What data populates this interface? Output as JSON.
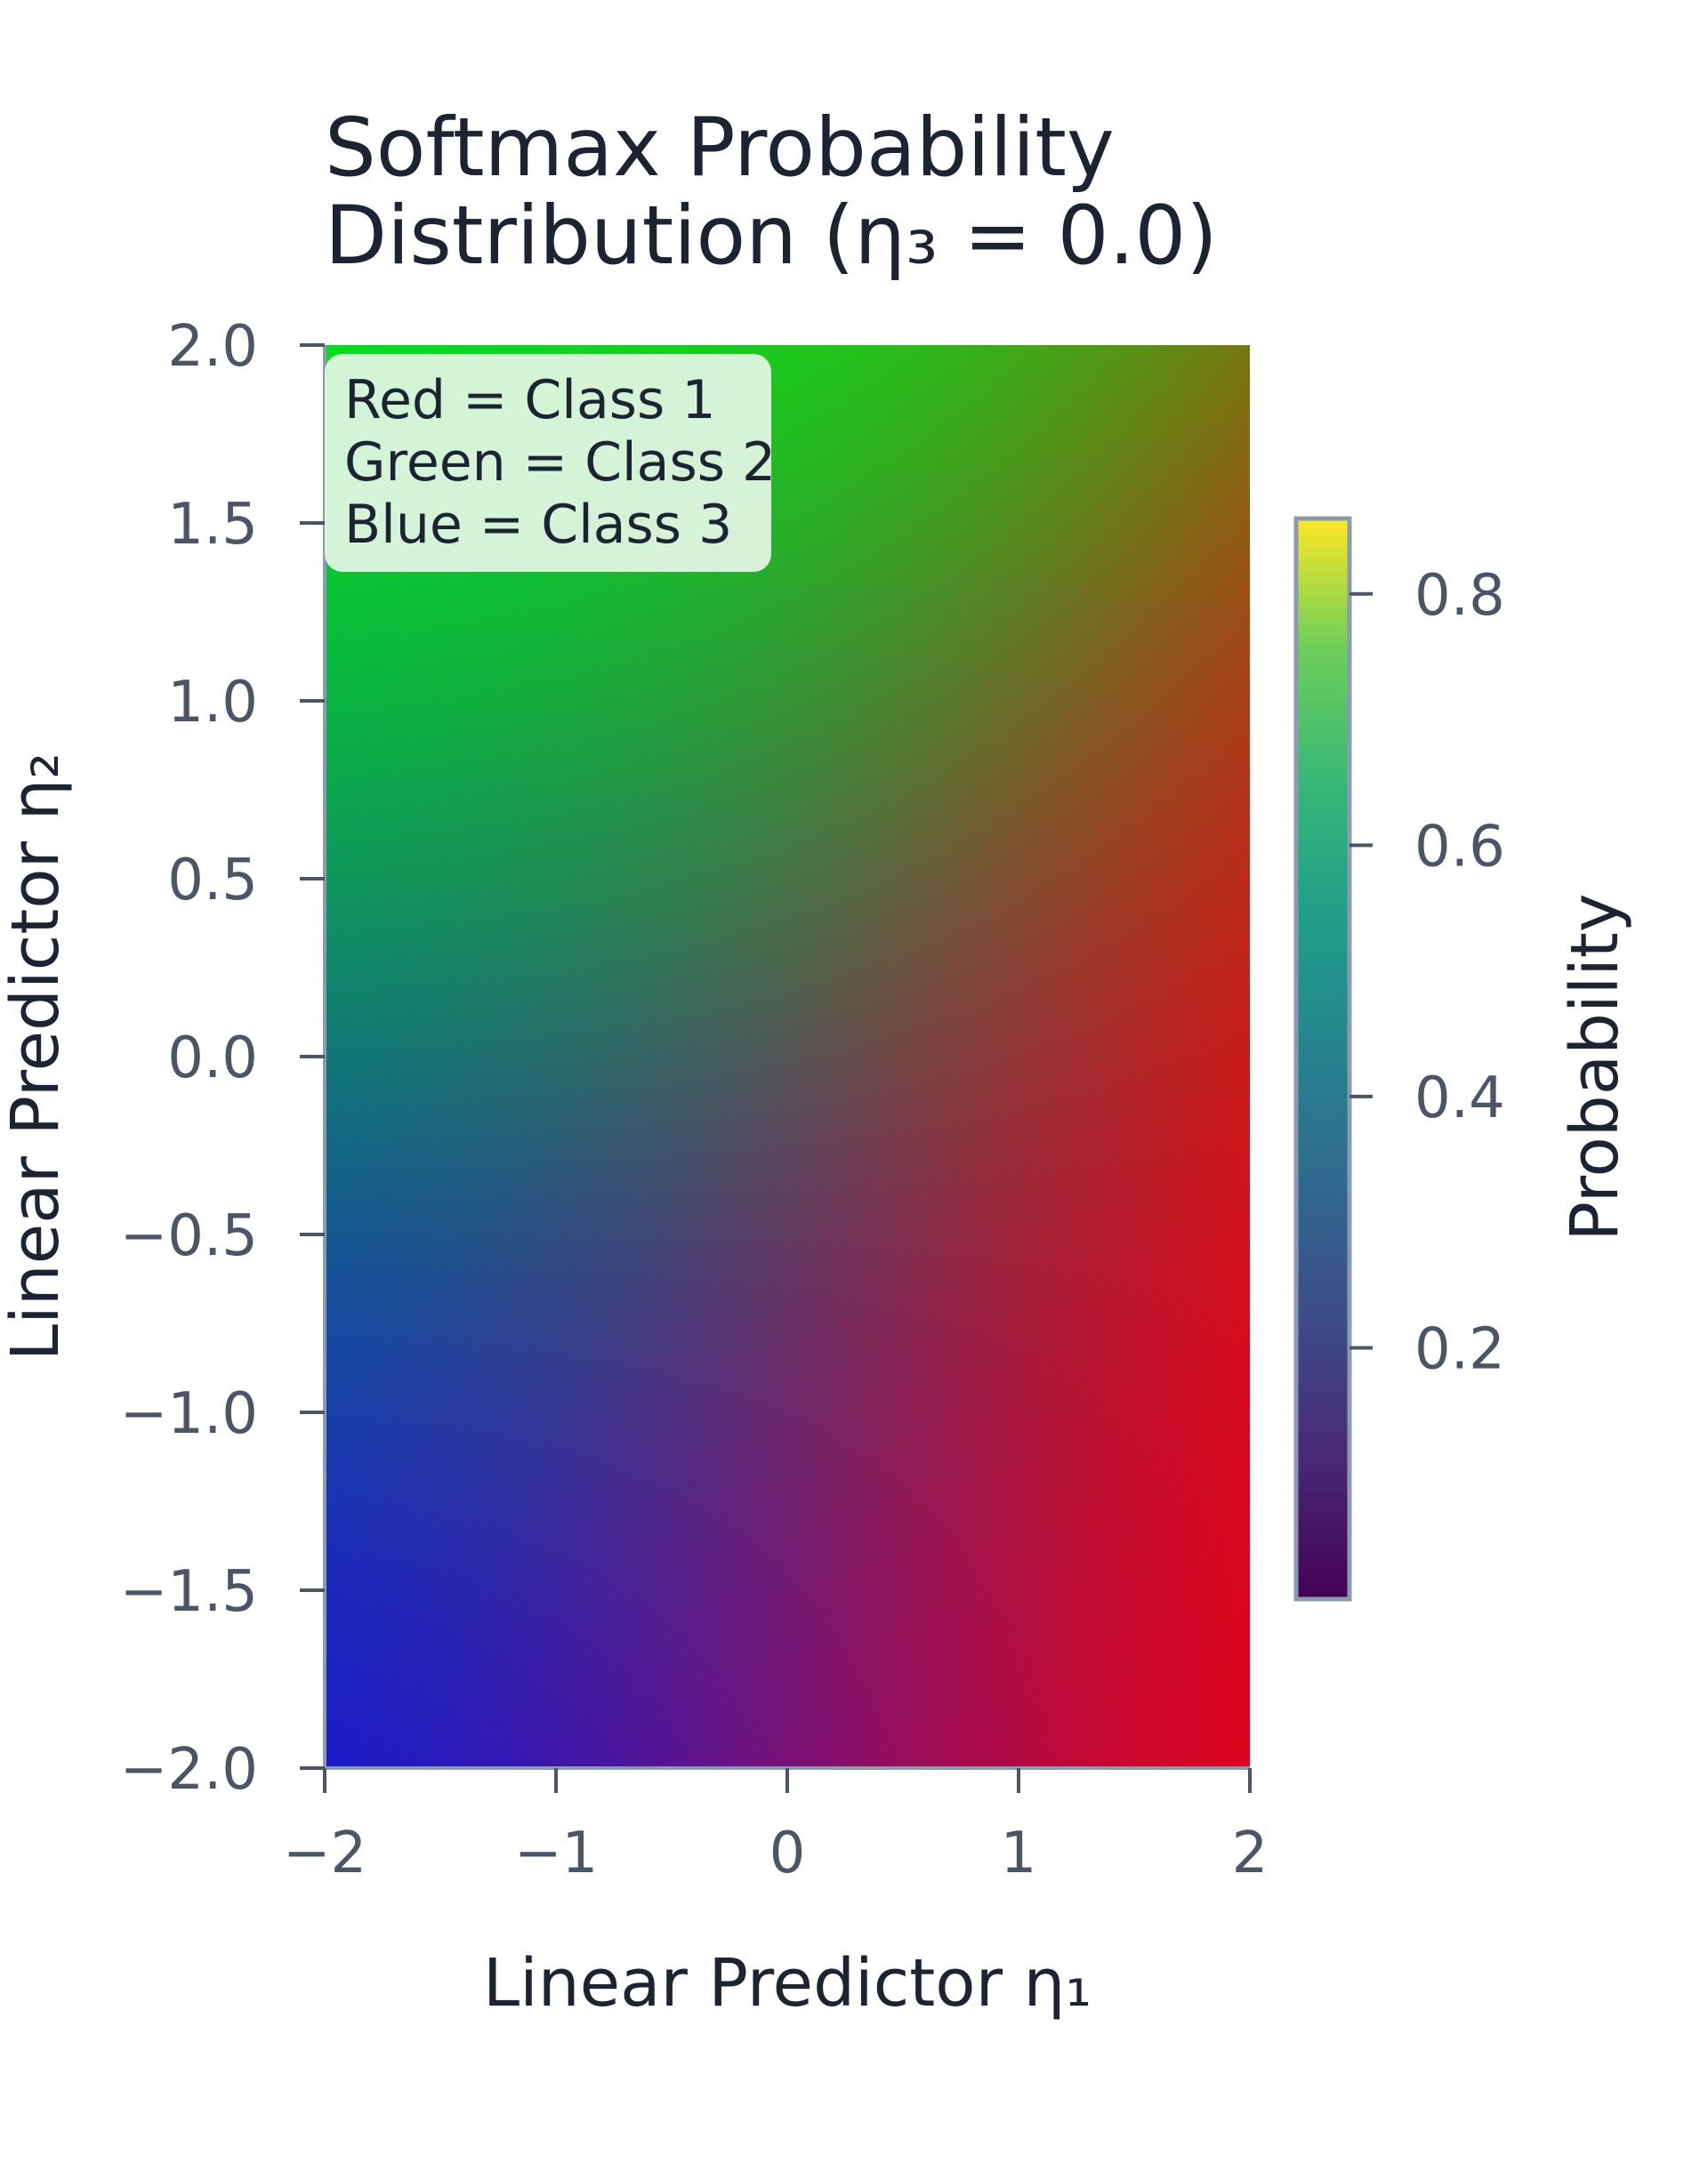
{
  "chart_data": {
    "type": "heatmap",
    "title_lines": [
      "Softmax Probability",
      "Distribution (η₃ = 0.0)"
    ],
    "xlabel": "Linear Predictor η₁",
    "ylabel": "Linear Predictor η₂",
    "xlim": [
      -2,
      2
    ],
    "ylim": [
      -2,
      2
    ],
    "x_ticks": [
      -2,
      -1,
      0,
      1,
      2
    ],
    "x_tick_labels": [
      "−2",
      "−1",
      "0",
      "1",
      "2"
    ],
    "y_ticks": [
      2.0,
      1.5,
      1.0,
      0.5,
      0.0,
      -0.5,
      -1.0,
      -1.5,
      -2.0
    ],
    "y_tick_labels": [
      "2.0",
      "1.5",
      "1.0",
      "0.5",
      "0.0",
      "−0.5",
      "−1.0",
      "−1.5",
      "−2.0"
    ],
    "eta3": 0.0,
    "color_encoding": {
      "red": "softmax probability of class 1",
      "green": "softmax probability of class 2",
      "blue": "softmax probability of class 3"
    },
    "legend_entries": [
      "Red = Class 1",
      "Green = Class 2",
      "Blue = Class 3"
    ],
    "legend_placement": "top-left",
    "colorbar": {
      "label": "Probability",
      "colormap": "viridis",
      "range": [
        0.0,
        0.86
      ],
      "ticks": [
        0.2,
        0.4,
        0.6,
        0.8
      ],
      "tick_labels": [
        "0.2",
        "0.4",
        "0.6",
        "0.8"
      ]
    },
    "grid": false
  },
  "colors": {
    "text": "#1c2333",
    "tick_text": "#4a5568",
    "axis_line": "#8a9bb0",
    "legend_bg": "#e6f6e6"
  }
}
